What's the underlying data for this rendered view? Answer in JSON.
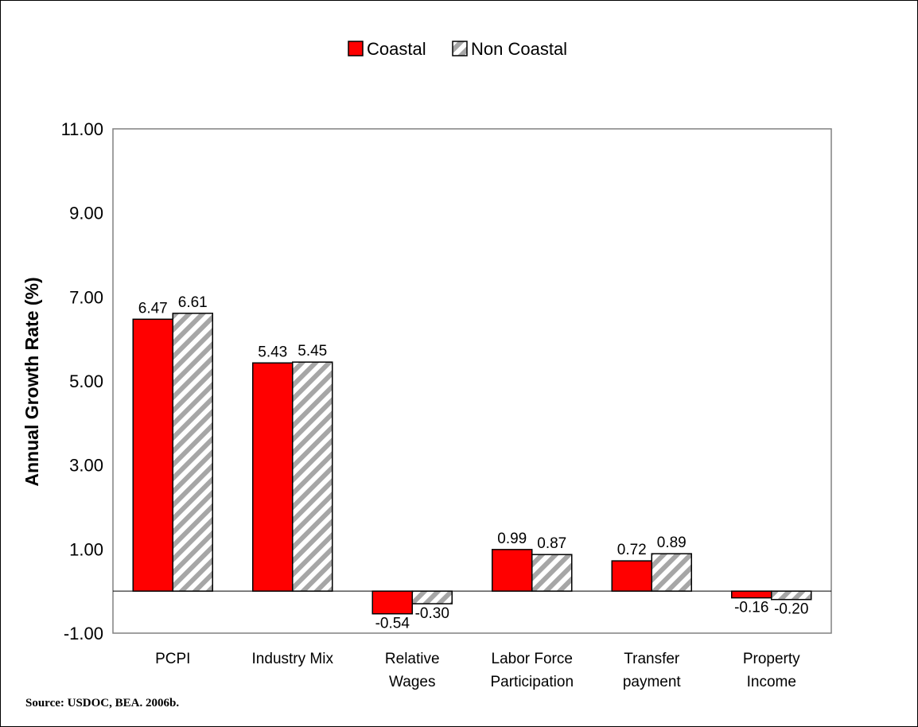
{
  "chart_data": {
    "type": "bar",
    "categories": [
      [
        "PCPI"
      ],
      [
        "Industry Mix"
      ],
      [
        "Relative",
        "Wages"
      ],
      [
        "Labor Force",
        "Participation"
      ],
      [
        "Transfer",
        "payment"
      ],
      [
        "Property",
        "Income"
      ]
    ],
    "series": [
      {
        "name": "Coastal",
        "values": [
          6.47,
          5.43,
          -0.54,
          0.99,
          0.72,
          -0.16
        ],
        "labels": [
          "6.47",
          "5.43",
          "-0.54",
          "0.99",
          "0.72",
          "-0.16"
        ],
        "color": "#ff0000",
        "pattern": "solid"
      },
      {
        "name": "Non Coastal",
        "values": [
          6.61,
          5.45,
          -0.3,
          0.87,
          0.89,
          -0.2
        ],
        "labels": [
          "6.61",
          "5.45",
          "-0.30",
          "0.87",
          "0.89",
          "-0.20"
        ],
        "color": "#bfbfbf",
        "pattern": "diagonal-stripes"
      }
    ],
    "ylabel": "Annual Growth Rate (%)",
    "xlabel": "",
    "title": "",
    "yticks": [
      "11.00",
      "9.00",
      "7.00",
      "5.00",
      "3.00",
      "1.00",
      "-1.00"
    ],
    "ytick_values": [
      11,
      9,
      7,
      5,
      3,
      1,
      -1
    ],
    "ylim": [
      -1,
      11
    ],
    "grid": false,
    "legend_position": "top-center"
  },
  "source_note": "Source: USDOC, BEA. 2006b."
}
